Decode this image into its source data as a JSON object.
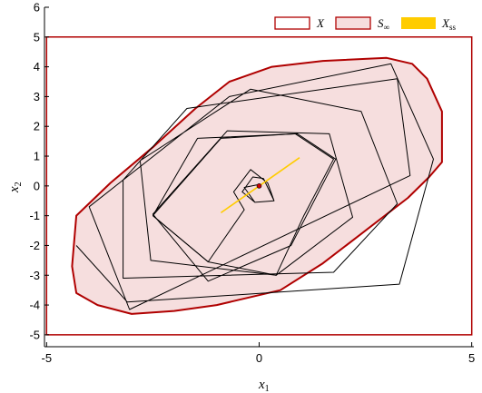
{
  "chart_data": {
    "type": "line",
    "title": "",
    "xlabel": "x",
    "xlabel_sub": "1",
    "ylabel": "x",
    "ylabel_sub": "2",
    "xlim": [
      -5.05,
      5.05
    ],
    "ylim": [
      -5.4,
      6.0
    ],
    "xticks": [
      -5,
      0,
      5
    ],
    "xtick_labels": [
      "-5",
      "0",
      "5"
    ],
    "yticks": [
      -5,
      -4,
      -3,
      -2,
      -1,
      0,
      1,
      2,
      3,
      4,
      5,
      6
    ],
    "ytick_labels": [
      "-5",
      "-4",
      "-3",
      "-2",
      "-1",
      "0",
      "1",
      "2",
      "3",
      "4",
      "5",
      "6"
    ],
    "grid": false,
    "legend_position": "top-right",
    "legend": [
      {
        "symbol": "X",
        "sub": "",
        "style": "outline",
        "color": "#b00000"
      },
      {
        "symbol": "S",
        "sub": "∞",
        "style": "filled",
        "color": "#b00000",
        "fill": "#f6dede"
      },
      {
        "symbol": "X",
        "sub": "ss",
        "style": "solid",
        "color": "#ffcc00"
      }
    ],
    "series": [
      {
        "name": "X",
        "kind": "constraint-box",
        "color": "#b00000",
        "points": [
          [
            -5,
            -5
          ],
          [
            5,
            -5
          ],
          [
            5,
            5
          ],
          [
            -5,
            5
          ]
        ]
      },
      {
        "name": "S∞",
        "kind": "invariant-set",
        "color": "#b00000",
        "fill": "#f6dede",
        "points": [
          [
            -4.3,
            -1.0
          ],
          [
            -3.5,
            0.1
          ],
          [
            -2.5,
            1.3
          ],
          [
            -1.5,
            2.6
          ],
          [
            -0.7,
            3.5
          ],
          [
            0.3,
            4.0
          ],
          [
            1.5,
            4.2
          ],
          [
            3.0,
            4.3
          ],
          [
            3.6,
            4.1
          ],
          [
            3.95,
            3.6
          ],
          [
            4.3,
            2.5
          ],
          [
            4.3,
            0.8
          ],
          [
            4.0,
            0.3
          ],
          [
            3.5,
            -0.4
          ],
          [
            2.5,
            -1.5
          ],
          [
            1.5,
            -2.6
          ],
          [
            0.5,
            -3.5
          ],
          [
            -1.0,
            -4.0
          ],
          [
            -2.0,
            -4.2
          ],
          [
            -3.0,
            -4.3
          ],
          [
            -3.8,
            -4.0
          ],
          [
            -4.3,
            -3.6
          ],
          [
            -4.4,
            -2.7
          ]
        ]
      },
      {
        "name": "X_ss",
        "kind": "steady-state-segment",
        "color": "#ffcc00",
        "points": [
          [
            -0.9,
            -0.9
          ],
          [
            0.95,
            0.95
          ]
        ]
      },
      {
        "name": "trajectory-1",
        "kind": "trajectory",
        "color": "#000000",
        "points": [
          [
            -4.3,
            -2.0
          ],
          [
            -3.1,
            -3.9
          ],
          [
            3.3,
            -3.3
          ],
          [
            4.1,
            0.9
          ],
          [
            3.1,
            4.1
          ],
          [
            -0.7,
            3.0
          ],
          [
            -4.0,
            -0.7
          ],
          [
            -3.05,
            -4.15
          ],
          [
            3.55,
            0.35
          ],
          [
            3.25,
            3.6
          ],
          [
            -1.7,
            2.6
          ],
          [
            -3.2,
            0.2
          ],
          [
            -3.2,
            -3.1
          ],
          [
            1.75,
            -2.9
          ],
          [
            3.25,
            -0.6
          ],
          [
            2.4,
            2.5
          ],
          [
            -0.2,
            3.25
          ],
          [
            -2.8,
            0.85
          ],
          [
            -2.55,
            -2.5
          ],
          [
            0.4,
            -3.0
          ],
          [
            2.2,
            -1.05
          ],
          [
            1.65,
            1.75
          ],
          [
            -0.75,
            1.85
          ],
          [
            -2.5,
            -0.95
          ],
          [
            -1.2,
            -3.2
          ],
          [
            0.75,
            -2.0
          ],
          [
            1.8,
            0.9
          ],
          [
            0.9,
            1.75
          ],
          [
            -1.45,
            1.6
          ],
          [
            -2.5,
            -1.0
          ]
        ]
      },
      {
        "name": "trajectory-2",
        "kind": "trajectory",
        "color": "#000000",
        "points": [
          [
            -2.5,
            -1.0
          ],
          [
            -1.2,
            -2.55
          ],
          [
            0.4,
            -3.0
          ],
          [
            1.05,
            -1.0
          ],
          [
            1.75,
            0.9
          ],
          [
            0.85,
            1.75
          ],
          [
            -0.9,
            1.6
          ],
          [
            -2.5,
            -1.0
          ]
        ]
      },
      {
        "name": "trajectory-3",
        "kind": "trajectory",
        "color": "#000000",
        "points": [
          [
            -2.5,
            -1.0
          ],
          [
            -1.2,
            -2.55
          ],
          [
            -0.35,
            -0.8
          ],
          [
            -0.6,
            -0.2
          ],
          [
            -0.2,
            0.55
          ],
          [
            0.2,
            0.1
          ],
          [
            0.35,
            -0.5
          ],
          [
            -0.1,
            -0.55
          ],
          [
            -0.4,
            -0.2
          ],
          [
            -0.15,
            0.3
          ],
          [
            0.1,
            0.25
          ],
          [
            0.35,
            -0.5
          ],
          [
            -0.1,
            -0.55
          ],
          [
            -0.35,
            -0.05
          ],
          [
            0.0,
            0.05
          ]
        ]
      }
    ],
    "markers": [
      {
        "name": "origin-point",
        "x": 0.0,
        "y": 0.0,
        "color": "#cc0000"
      }
    ]
  }
}
